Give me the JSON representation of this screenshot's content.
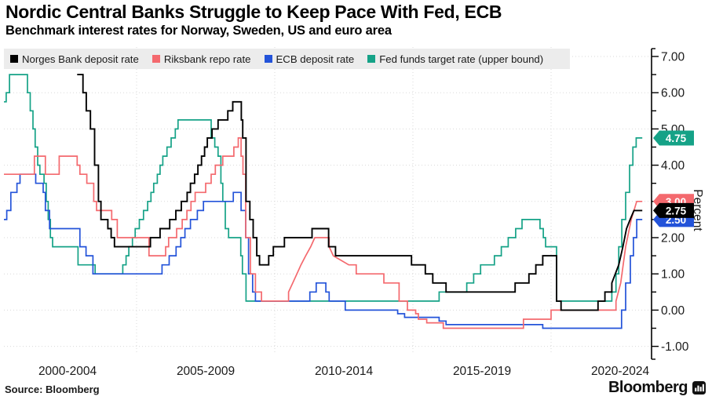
{
  "header": {
    "title": "Nordic Central Banks Struggle to Keep Pace With Fed, ECB",
    "subtitle": "Benchmark interest rates for Norway, Sweden, US and euro area"
  },
  "footer": {
    "source": "Source: Bloomberg",
    "brand_wordmark": "Bloomberg",
    "brand_icon": "bar-chart-icon"
  },
  "colors": {
    "norges": "#000000",
    "riksbank": "#f4696e",
    "ecb": "#2353d9",
    "fed": "#15a287",
    "legend_bg": "#ececec",
    "grid": "#d9d9d9",
    "axis": "#000000",
    "badge_text": "#ffffff"
  },
  "legend": [
    {
      "id": "norges",
      "label": "Norges Bank deposit rate"
    },
    {
      "id": "riksbank",
      "label": "Riksbank repo rate"
    },
    {
      "id": "ecb",
      "label": "ECB deposit rate"
    },
    {
      "id": "fed",
      "label": "Fed funds target rate (upper bound)"
    }
  ],
  "chart_data": {
    "type": "line",
    "step_mode": "step-after",
    "title": "Benchmark interest rates for Norway, Sweden, US and euro area",
    "ylabel": "Percent",
    "ylim": [
      -1,
      7
    ],
    "y_major_step": 1.0,
    "y_minor_step": 0.5,
    "y_tick_labels": [
      "7.00",
      "6.00",
      "5.00",
      "4.00",
      "3.00",
      "2.00",
      "1.00",
      "0.00",
      "-1.00"
    ],
    "x_start": 2000.2,
    "x_end": 2023.3,
    "x_tick_labels": [
      {
        "text": "2000-2004",
        "center_year": 2002.5
      },
      {
        "text": "2005-2009",
        "center_year": 2007.5
      },
      {
        "text": "2010-2014",
        "center_year": 2012.5
      },
      {
        "text": "2015-2019",
        "center_year": 2017.5
      },
      {
        "text": "2020-2024",
        "center_year": 2022.5
      }
    ],
    "x_gridline_years": [
      2005,
      2010,
      2015,
      2020
    ],
    "grid": true,
    "legend_position": "top",
    "badge_draw_order": [
      "fed",
      "riksbank",
      "ecb",
      "norges"
    ],
    "series_draw_order": [
      "fed",
      "ecb",
      "riksbank",
      "norges"
    ],
    "series": [
      {
        "id": "fed",
        "name": "Fed funds target rate (upper bound)",
        "end_label": "4.75",
        "end_value": 4.75,
        "points": [
          [
            2000.2,
            5.75
          ],
          [
            2000.28,
            6.0
          ],
          [
            2000.4,
            6.5
          ],
          [
            2001.05,
            6.0
          ],
          [
            2001.15,
            5.5
          ],
          [
            2001.25,
            5.0
          ],
          [
            2001.33,
            4.5
          ],
          [
            2001.42,
            4.0
          ],
          [
            2001.5,
            3.75
          ],
          [
            2001.65,
            3.5
          ],
          [
            2001.73,
            3.0
          ],
          [
            2001.8,
            2.5
          ],
          [
            2001.88,
            2.0
          ],
          [
            2001.96,
            1.75
          ],
          [
            2002.88,
            1.25
          ],
          [
            2003.5,
            1.0
          ],
          [
            2004.5,
            1.25
          ],
          [
            2004.62,
            1.5
          ],
          [
            2004.72,
            1.75
          ],
          [
            2004.85,
            2.0
          ],
          [
            2004.95,
            2.25
          ],
          [
            2005.1,
            2.5
          ],
          [
            2005.25,
            2.75
          ],
          [
            2005.4,
            3.0
          ],
          [
            2005.52,
            3.25
          ],
          [
            2005.62,
            3.5
          ],
          [
            2005.75,
            3.75
          ],
          [
            2005.85,
            4.0
          ],
          [
            2005.95,
            4.25
          ],
          [
            2006.1,
            4.5
          ],
          [
            2006.25,
            4.75
          ],
          [
            2006.4,
            5.0
          ],
          [
            2006.5,
            5.25
          ],
          [
            2007.7,
            4.75
          ],
          [
            2007.83,
            4.5
          ],
          [
            2007.95,
            4.25
          ],
          [
            2008.05,
            3.5
          ],
          [
            2008.12,
            3.0
          ],
          [
            2008.21,
            2.25
          ],
          [
            2008.33,
            2.0
          ],
          [
            2008.77,
            1.5
          ],
          [
            2008.83,
            1.0
          ],
          [
            2008.96,
            0.25
          ],
          [
            2015.95,
            0.5
          ],
          [
            2016.95,
            0.75
          ],
          [
            2017.2,
            1.0
          ],
          [
            2017.45,
            1.25
          ],
          [
            2017.95,
            1.5
          ],
          [
            2018.2,
            1.75
          ],
          [
            2018.45,
            2.0
          ],
          [
            2018.72,
            2.25
          ],
          [
            2018.95,
            2.5
          ],
          [
            2019.6,
            2.25
          ],
          [
            2019.72,
            2.0
          ],
          [
            2019.8,
            1.75
          ],
          [
            2020.2,
            0.25
          ],
          [
            2022.2,
            0.5
          ],
          [
            2022.35,
            1.0
          ],
          [
            2022.45,
            1.75
          ],
          [
            2022.56,
            2.5
          ],
          [
            2022.7,
            3.25
          ],
          [
            2022.84,
            4.0
          ],
          [
            2022.96,
            4.5
          ],
          [
            2023.08,
            4.75
          ]
        ]
      },
      {
        "id": "ecb",
        "name": "ECB deposit rate",
        "end_label": "2.50",
        "end_value": 2.5,
        "points": [
          [
            2000.2,
            2.5
          ],
          [
            2000.3,
            2.75
          ],
          [
            2000.45,
            3.25
          ],
          [
            2000.67,
            3.5
          ],
          [
            2000.78,
            3.75
          ],
          [
            2001.35,
            3.5
          ],
          [
            2001.62,
            3.25
          ],
          [
            2001.7,
            2.75
          ],
          [
            2001.85,
            2.25
          ],
          [
            2002.95,
            1.75
          ],
          [
            2003.17,
            1.5
          ],
          [
            2003.42,
            1.0
          ],
          [
            2005.92,
            1.25
          ],
          [
            2006.18,
            1.5
          ],
          [
            2006.43,
            1.75
          ],
          [
            2006.6,
            2.0
          ],
          [
            2006.75,
            2.25
          ],
          [
            2006.95,
            2.5
          ],
          [
            2007.2,
            2.75
          ],
          [
            2007.42,
            3.0
          ],
          [
            2008.5,
            3.25
          ],
          [
            2008.78,
            2.75
          ],
          [
            2008.95,
            2.0
          ],
          [
            2009.05,
            1.0
          ],
          [
            2009.2,
            0.5
          ],
          [
            2009.3,
            0.25
          ],
          [
            2011.27,
            0.5
          ],
          [
            2011.5,
            0.75
          ],
          [
            2011.85,
            0.5
          ],
          [
            2011.97,
            0.25
          ],
          [
            2012.55,
            0.0
          ],
          [
            2014.45,
            -0.1
          ],
          [
            2014.7,
            -0.2
          ],
          [
            2015.95,
            -0.3
          ],
          [
            2016.2,
            -0.4
          ],
          [
            2019.7,
            -0.5
          ],
          [
            2022.55,
            0.0
          ],
          [
            2022.7,
            0.75
          ],
          [
            2022.87,
            1.5
          ],
          [
            2022.98,
            2.0
          ],
          [
            2023.1,
            2.5
          ]
        ]
      },
      {
        "id": "riksbank",
        "name": "Riksbank repo rate",
        "end_label": "3.00",
        "end_value": 3.0,
        "points": [
          [
            2000.2,
            3.75
          ],
          [
            2001.3,
            4.25
          ],
          [
            2001.7,
            3.75
          ],
          [
            2002.2,
            4.25
          ],
          [
            2002.85,
            4.0
          ],
          [
            2002.95,
            3.75
          ],
          [
            2003.2,
            3.5
          ],
          [
            2003.45,
            3.0
          ],
          [
            2003.55,
            2.75
          ],
          [
            2004.1,
            2.5
          ],
          [
            2004.3,
            2.0
          ],
          [
            2005.45,
            1.5
          ],
          [
            2006.05,
            1.75
          ],
          [
            2006.16,
            2.0
          ],
          [
            2006.45,
            2.25
          ],
          [
            2006.65,
            2.5
          ],
          [
            2006.82,
            2.75
          ],
          [
            2006.97,
            3.0
          ],
          [
            2007.12,
            3.25
          ],
          [
            2007.5,
            3.5
          ],
          [
            2007.7,
            3.75
          ],
          [
            2007.85,
            4.0
          ],
          [
            2008.12,
            4.25
          ],
          [
            2008.52,
            4.5
          ],
          [
            2008.68,
            4.75
          ],
          [
            2008.78,
            4.25
          ],
          [
            2008.85,
            3.75
          ],
          [
            2008.95,
            2.0
          ],
          [
            2009.12,
            1.0
          ],
          [
            2009.3,
            0.5
          ],
          [
            2009.52,
            0.25
          ],
          [
            2010.5,
            0.5
          ],
          [
            2010.65,
            0.75,
            "l"
          ],
          [
            2010.8,
            1.0,
            "l"
          ],
          [
            2010.95,
            1.25,
            "l"
          ],
          [
            2011.12,
            1.5,
            "l"
          ],
          [
            2011.3,
            1.75,
            "l"
          ],
          [
            2011.45,
            2.0,
            "l"
          ],
          [
            2011.97,
            1.75
          ],
          [
            2012.12,
            1.5,
            "l"
          ],
          [
            2012.68,
            1.25,
            "l"
          ],
          [
            2012.95,
            1.0
          ],
          [
            2013.95,
            0.75
          ],
          [
            2014.5,
            0.25
          ],
          [
            2014.8,
            0.0
          ],
          [
            2015.1,
            -0.1
          ],
          [
            2015.2,
            -0.25
          ],
          [
            2015.5,
            -0.35
          ],
          [
            2016.1,
            -0.5
          ],
          [
            2019.0,
            -0.25
          ],
          [
            2020.0,
            0.0
          ],
          [
            2022.35,
            0.25
          ],
          [
            2022.52,
            0.75,
            "l"
          ],
          [
            2022.7,
            1.75,
            "l"
          ],
          [
            2022.9,
            2.5,
            "l"
          ],
          [
            2023.1,
            3.0,
            "l"
          ]
        ]
      },
      {
        "id": "norges",
        "name": "Norges Bank deposit rate",
        "end_label": "2.75",
        "end_value": 2.75,
        "points": [
          [
            2002.85,
            6.5
          ],
          [
            2003.06,
            6.0
          ],
          [
            2003.18,
            5.5
          ],
          [
            2003.33,
            5.0
          ],
          [
            2003.48,
            4.0
          ],
          [
            2003.62,
            3.0
          ],
          [
            2003.71,
            2.5
          ],
          [
            2003.96,
            2.25
          ],
          [
            2004.08,
            2.0
          ],
          [
            2004.2,
            1.75
          ],
          [
            2005.5,
            2.0
          ],
          [
            2005.85,
            2.25
          ],
          [
            2006.2,
            2.5
          ],
          [
            2006.42,
            2.75
          ],
          [
            2006.62,
            3.0
          ],
          [
            2006.83,
            3.25
          ],
          [
            2006.95,
            3.5
          ],
          [
            2007.1,
            3.75
          ],
          [
            2007.22,
            4.0
          ],
          [
            2007.35,
            4.25
          ],
          [
            2007.46,
            4.5
          ],
          [
            2007.56,
            4.75
          ],
          [
            2007.73,
            5.0
          ],
          [
            2007.95,
            5.25
          ],
          [
            2008.3,
            5.5
          ],
          [
            2008.48,
            5.75
          ],
          [
            2008.79,
            5.25
          ],
          [
            2008.84,
            4.75
          ],
          [
            2008.96,
            3.0
          ],
          [
            2009.1,
            2.5
          ],
          [
            2009.22,
            2.0
          ],
          [
            2009.35,
            1.5
          ],
          [
            2009.45,
            1.25
          ],
          [
            2009.78,
            1.5
          ],
          [
            2009.95,
            1.75
          ],
          [
            2010.35,
            2.0
          ],
          [
            2011.35,
            2.25
          ],
          [
            2011.95,
            1.75
          ],
          [
            2012.2,
            1.5
          ],
          [
            2014.95,
            1.25
          ],
          [
            2015.45,
            1.0
          ],
          [
            2015.72,
            0.75
          ],
          [
            2016.2,
            0.5
          ],
          [
            2018.7,
            0.75
          ],
          [
            2019.2,
            1.0
          ],
          [
            2019.45,
            1.25
          ],
          [
            2019.7,
            1.5
          ],
          [
            2020.2,
            0.25
          ],
          [
            2020.36,
            0.0
          ],
          [
            2021.7,
            0.25
          ],
          [
            2021.95,
            0.5
          ],
          [
            2022.2,
            0.75
          ],
          [
            2022.45,
            1.25,
            "l"
          ],
          [
            2022.6,
            1.75,
            "l"
          ],
          [
            2022.73,
            2.25,
            "l"
          ],
          [
            2022.86,
            2.5,
            "l"
          ],
          [
            2023.0,
            2.75,
            "l"
          ]
        ]
      }
    ]
  }
}
